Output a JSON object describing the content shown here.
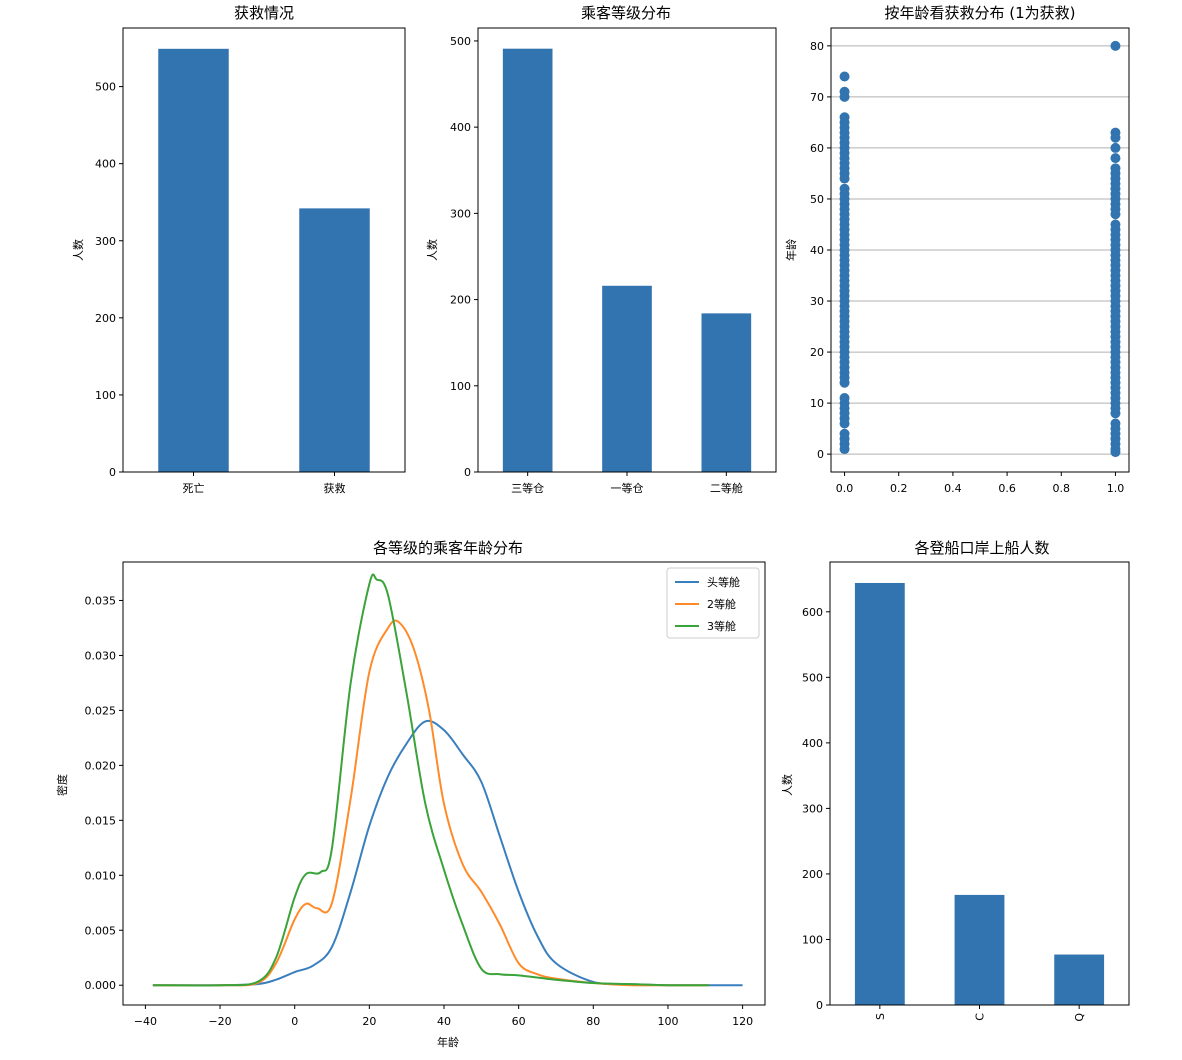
{
  "colors": {
    "bar": "#3274b0",
    "line1": "#3a7fbd",
    "line2": "#ff8a2a",
    "line3": "#3aa33a",
    "grid": "#b0b0b0"
  },
  "chart_data": [
    {
      "type": "bar",
      "title": "获救情况",
      "categories": [
        "死亡",
        "获救"
      ],
      "values": [
        549,
        342
      ],
      "xlabel": "",
      "ylabel": "人数",
      "ylim": [
        0,
        576
      ],
      "yticks": [
        0,
        100,
        200,
        300,
        400,
        500
      ],
      "grid": false
    },
    {
      "type": "bar",
      "title": "乘客等级分布",
      "categories": [
        "三等仓",
        "一等仓",
        "二等舱"
      ],
      "values": [
        491,
        216,
        184
      ],
      "xlabel": "",
      "ylabel": "人数",
      "ylim": [
        0,
        515
      ],
      "yticks": [
        0,
        100,
        200,
        300,
        400,
        500
      ],
      "grid": false
    },
    {
      "type": "scatter",
      "title": "按年龄看获救分布 (1为获救)",
      "xlabel": "",
      "ylabel": "年龄",
      "xlim": [
        -0.05,
        1.05
      ],
      "ylim": [
        -3.5,
        83.5
      ],
      "xticks": [
        0.0,
        0.2,
        0.4,
        0.6,
        0.8,
        1.0
      ],
      "yticks": [
        0,
        10,
        20,
        30,
        40,
        50,
        60,
        70,
        80
      ],
      "grid": "y",
      "points_x0": [
        1,
        2,
        3,
        4,
        6,
        7,
        8,
        9,
        10,
        11,
        14,
        15,
        16,
        17,
        18,
        19,
        20,
        21,
        22,
        23,
        24,
        25,
        26,
        27,
        28,
        29,
        30,
        31,
        32,
        33,
        34,
        35,
        36,
        37,
        38,
        39,
        40,
        41,
        42,
        43,
        44,
        45,
        46,
        47,
        48,
        49,
        50,
        51,
        52,
        54,
        55,
        56,
        57,
        58,
        59,
        60,
        61,
        62,
        63,
        64,
        65,
        66,
        70,
        71,
        74
      ],
      "points_x1": [
        0.4,
        1,
        2,
        3,
        4,
        5,
        6,
        8,
        9,
        10,
        11,
        12,
        13,
        14,
        15,
        16,
        17,
        18,
        19,
        20,
        21,
        22,
        23,
        24,
        25,
        26,
        27,
        28,
        29,
        30,
        31,
        32,
        33,
        34,
        35,
        36,
        37,
        38,
        39,
        40,
        41,
        42,
        43,
        44,
        45,
        47,
        48,
        49,
        50,
        51,
        52,
        53,
        54,
        55,
        56,
        58,
        60,
        62,
        63,
        80
      ]
    },
    {
      "type": "line",
      "title": "各等级的乘客年龄分布",
      "xlabel": "年龄",
      "ylabel": "密度",
      "xlim": [
        -46,
        126
      ],
      "ylim": [
        -0.0018,
        0.0385
      ],
      "xticks": [
        -40,
        -20,
        0,
        20,
        40,
        60,
        80,
        100,
        120
      ],
      "yticks": [
        0.0,
        0.005,
        0.01,
        0.015,
        0.02,
        0.025,
        0.03,
        0.035
      ],
      "ytick_labels": [
        "0.000",
        "0.005",
        "0.010",
        "0.015",
        "0.020",
        "0.025",
        "0.030",
        "0.035"
      ],
      "legend": "top-right",
      "grid": false,
      "series": [
        {
          "name": "头等舱",
          "x": [
            -38,
            -20,
            -10,
            -5,
            0,
            5,
            10,
            15,
            20,
            25,
            30,
            35,
            40,
            45,
            50,
            55,
            60,
            65,
            70,
            80,
            90,
            100,
            110,
            120
          ],
          "y": [
            0,
            0,
            0.0001,
            0.0005,
            0.0012,
            0.0018,
            0.0035,
            0.0085,
            0.0145,
            0.019,
            0.022,
            0.024,
            0.0232,
            0.021,
            0.0185,
            0.0135,
            0.0085,
            0.0045,
            0.002,
            0.0003,
            0.0001,
            0,
            0,
            0
          ]
        },
        {
          "name": "2等舱",
          "x": [
            -38,
            -20,
            -10,
            -5,
            0,
            3,
            6,
            10,
            15,
            20,
            25,
            28,
            32,
            36,
            40,
            45,
            50,
            55,
            60,
            65,
            70,
            80,
            90,
            100,
            111
          ],
          "y": [
            0,
            0,
            0.0002,
            0.002,
            0.006,
            0.0074,
            0.007,
            0.0075,
            0.017,
            0.0285,
            0.0325,
            0.033,
            0.0305,
            0.025,
            0.0165,
            0.011,
            0.0085,
            0.0055,
            0.002,
            0.001,
            0.0006,
            0.0002,
            0,
            0,
            0
          ]
        },
        {
          "name": "3等舱",
          "x": [
            -38,
            -20,
            -10,
            -5,
            0,
            3,
            7,
            10,
            15,
            20,
            22,
            25,
            30,
            35,
            40,
            45,
            50,
            55,
            60,
            70,
            80,
            90,
            100,
            111
          ],
          "y": [
            0,
            0,
            0.0003,
            0.0025,
            0.008,
            0.0101,
            0.0103,
            0.0125,
            0.0275,
            0.0365,
            0.0369,
            0.0355,
            0.0265,
            0.0165,
            0.0105,
            0.0055,
            0.0015,
            0.001,
            0.0009,
            0.0005,
            0.0002,
            0.0001,
            0,
            0
          ]
        }
      ]
    },
    {
      "type": "bar",
      "title": "各登船口岸上船人数",
      "categories": [
        "S",
        "C",
        "Q"
      ],
      "values": [
        644,
        168,
        77
      ],
      "xlabel": "",
      "ylabel": "人数",
      "ylim": [
        0,
        676
      ],
      "yticks": [
        0,
        100,
        200,
        300,
        400,
        500,
        600
      ],
      "xtick_rotation": 90,
      "grid": false
    }
  ]
}
